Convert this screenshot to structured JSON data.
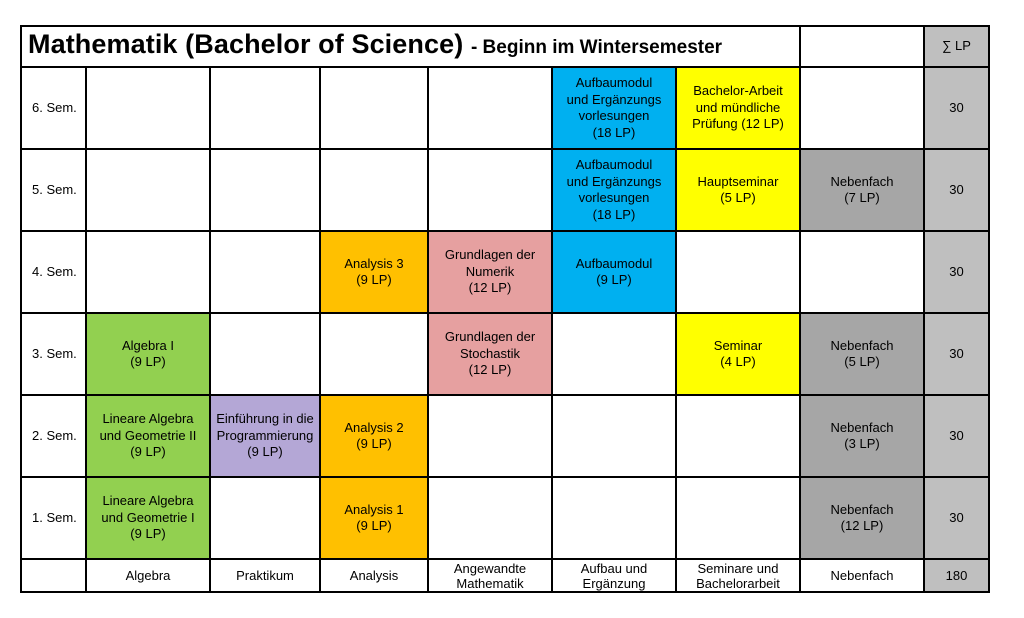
{
  "header": {
    "title": "Mathematik (Bachelor of Science)",
    "subtitle": "- Beginn im Wintersemester",
    "sum_label": "∑ LP"
  },
  "colors": {
    "algebra": "#92d050",
    "praktikum": "#b4a7d6",
    "analysis": "#ffc000",
    "angewandte": "#e6a0a0",
    "aufbau": "#00b0f0",
    "seminare": "#ffff00",
    "nebenfach": "#a6a6a6",
    "sum": "#bfbfbf"
  },
  "rows": [
    {
      "semester": "6. Sem.",
      "cells": [
        "",
        "",
        "",
        "",
        "Aufbaumodul\nund Ergänzungs\nvorlesungen\n(18 LP)",
        "Bachelor-Arbeit\nund mündliche\nPrüfung (12 LP)",
        ""
      ],
      "sum": "30"
    },
    {
      "semester": "5. Sem.",
      "cells": [
        "",
        "",
        "",
        "",
        "Aufbaumodul\nund Ergänzungs\nvorlesungen\n(18 LP)",
        "Hauptseminar\n(5 LP)",
        "Nebenfach\n(7 LP)"
      ],
      "sum": "30"
    },
    {
      "semester": "4. Sem.",
      "cells": [
        "",
        "",
        "Analysis 3\n(9 LP)",
        "Grundlagen der\nNumerik\n(12 LP)",
        "Aufbaumodul\n(9 LP)",
        "",
        ""
      ],
      "sum": "30"
    },
    {
      "semester": "3. Sem.",
      "cells": [
        "Algebra I\n(9 LP)",
        "",
        "",
        "Grundlagen der\nStochastik\n(12 LP)",
        "",
        "Seminar\n(4 LP)",
        "Nebenfach\n(5 LP)"
      ],
      "sum": "30"
    },
    {
      "semester": "2. Sem.",
      "cells": [
        "Lineare Algebra\nund Geometrie II\n(9 LP)",
        "Einführung in die\nProgrammierung\n(9 LP)",
        "Analysis 2\n(9 LP)",
        "",
        "",
        "",
        "Nebenfach\n(3 LP)"
      ],
      "sum": "30"
    },
    {
      "semester": "1. Sem.",
      "cells": [
        "Lineare Algebra\nund Geometrie I\n(9 LP)",
        "",
        "Analysis 1\n(9 LP)",
        "",
        "",
        "",
        "Nebenfach\n(12 LP)"
      ],
      "sum": "30"
    }
  ],
  "columns": [
    {
      "label": "Algebra"
    },
    {
      "label": "Praktikum"
    },
    {
      "label": "Analysis"
    },
    {
      "label": "Angewandte\nMathematik"
    },
    {
      "label": "Aufbau und\nErgänzung"
    },
    {
      "label": "Seminare und\nBachelorarbeit"
    },
    {
      "label": "Nebenfach"
    }
  ],
  "total": "180"
}
